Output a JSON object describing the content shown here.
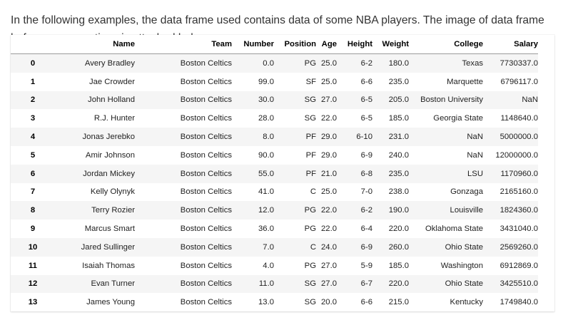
{
  "intro_text": "In the following examples, the data frame used contains data of some NBA players. The image of data frame before any operations is attached below.",
  "dataframe": {
    "columns": [
      "",
      "Name",
      "Team",
      "Number",
      "Position",
      "Age",
      "Height",
      "Weight",
      "College",
      "Salary"
    ],
    "rows": [
      [
        "0",
        "Avery Bradley",
        "Boston Celtics",
        "0.0",
        "PG",
        "25.0",
        "6-2",
        "180.0",
        "Texas",
        "7730337.0"
      ],
      [
        "1",
        "Jae Crowder",
        "Boston Celtics",
        "99.0",
        "SF",
        "25.0",
        "6-6",
        "235.0",
        "Marquette",
        "6796117.0"
      ],
      [
        "2",
        "John Holland",
        "Boston Celtics",
        "30.0",
        "SG",
        "27.0",
        "6-5",
        "205.0",
        "Boston University",
        "NaN"
      ],
      [
        "3",
        "R.J. Hunter",
        "Boston Celtics",
        "28.0",
        "SG",
        "22.0",
        "6-5",
        "185.0",
        "Georgia State",
        "1148640.0"
      ],
      [
        "4",
        "Jonas Jerebko",
        "Boston Celtics",
        "8.0",
        "PF",
        "29.0",
        "6-10",
        "231.0",
        "NaN",
        "5000000.0"
      ],
      [
        "5",
        "Amir Johnson",
        "Boston Celtics",
        "90.0",
        "PF",
        "29.0",
        "6-9",
        "240.0",
        "NaN",
        "12000000.0"
      ],
      [
        "6",
        "Jordan Mickey",
        "Boston Celtics",
        "55.0",
        "PF",
        "21.0",
        "6-8",
        "235.0",
        "LSU",
        "1170960.0"
      ],
      [
        "7",
        "Kelly Olynyk",
        "Boston Celtics",
        "41.0",
        "C",
        "25.0",
        "7-0",
        "238.0",
        "Gonzaga",
        "2165160.0"
      ],
      [
        "8",
        "Terry Rozier",
        "Boston Celtics",
        "12.0",
        "PG",
        "22.0",
        "6-2",
        "190.0",
        "Louisville",
        "1824360.0"
      ],
      [
        "9",
        "Marcus Smart",
        "Boston Celtics",
        "36.0",
        "PG",
        "22.0",
        "6-4",
        "220.0",
        "Oklahoma State",
        "3431040.0"
      ],
      [
        "10",
        "Jared Sullinger",
        "Boston Celtics",
        "7.0",
        "C",
        "24.0",
        "6-9",
        "260.0",
        "Ohio State",
        "2569260.0"
      ],
      [
        "11",
        "Isaiah Thomas",
        "Boston Celtics",
        "4.0",
        "PG",
        "27.0",
        "5-9",
        "185.0",
        "Washington",
        "6912869.0"
      ],
      [
        "12",
        "Evan Turner",
        "Boston Celtics",
        "11.0",
        "SG",
        "27.0",
        "6-7",
        "220.0",
        "Ohio State",
        "3425510.0"
      ],
      [
        "13",
        "James Young",
        "Boston Celtics",
        "13.0",
        "SG",
        "20.0",
        "6-6",
        "215.0",
        "Kentucky",
        "1749840.0"
      ]
    ]
  }
}
